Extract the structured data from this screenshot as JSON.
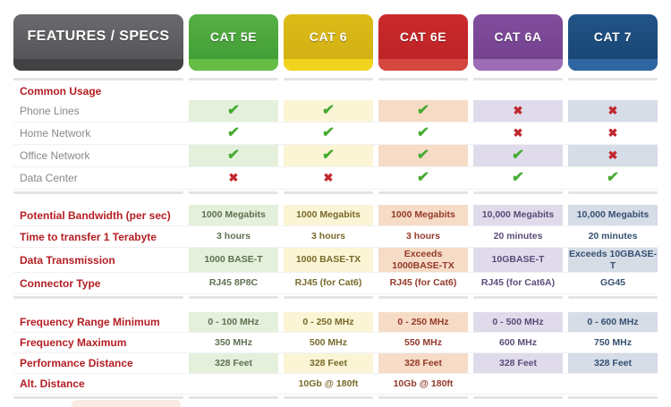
{
  "header": {
    "features_tab": {
      "label": "FEATURES / SPECS",
      "body_top": "#6a6b6e",
      "body": "#4f5052",
      "strip": "#414244"
    },
    "columns": [
      {
        "label": "CAT 5E",
        "body_top": "#55b045",
        "body": "#3f9a33",
        "strip": "#66bd45",
        "tint": "#e4f0db",
        "text": "#5e7152"
      },
      {
        "label": "CAT 6",
        "body_top": "#dcbb18",
        "body": "#cfae12",
        "strip": "#f0d41e",
        "tint": "#fbf5d6",
        "text": "#786a2b"
      },
      {
        "label": "CAT 6E",
        "body_top": "#cb2a2c",
        "body": "#ba2125",
        "strip": "#d54840",
        "tint": "#f6dcc6",
        "text": "#94392b"
      },
      {
        "label": "CAT 6A",
        "body_top": "#824d9d",
        "body": "#713f8c",
        "strip": "#9c6cb5",
        "tint": "#e0dbeb",
        "text": "#5b4b79"
      },
      {
        "label": "CAT 7",
        "body_top": "#215487",
        "body": "#174472",
        "strip": "#2d66a0",
        "tint": "#d6dde7",
        "text": "#365070"
      }
    ]
  },
  "marks": {
    "check": "✔",
    "cross": "✖"
  },
  "colors": {
    "check_green": "#44ab30",
    "cross_red": "#c1272d",
    "section_label_red": "#b41e23",
    "plain_label_gray": "#87888a",
    "divider_gray": "#e3e4e5"
  },
  "sections": [
    {
      "name": "common-usage",
      "title": "Common Usage",
      "label_style": "plain",
      "rows": [
        {
          "label": "Phone Lines",
          "type": "marks",
          "values": [
            "check",
            "check",
            "check",
            "cross",
            "cross"
          ]
        },
        {
          "label": "Home Network",
          "type": "marks",
          "values": [
            "check",
            "check",
            "check",
            "cross",
            "cross"
          ]
        },
        {
          "label": "Office Network",
          "type": "marks",
          "values": [
            "check",
            "check",
            "check",
            "check",
            "cross"
          ]
        },
        {
          "label": "Data Center",
          "type": "marks",
          "values": [
            "cross",
            "cross",
            "check",
            "check",
            "check"
          ]
        }
      ]
    },
    {
      "name": "bandwidth-specs",
      "label_style": "section",
      "rows": [
        {
          "label": "Potential Bandwidth (per sec)",
          "type": "text",
          "values": [
            "1000 Megabits",
            "1000 Megabits",
            "1000 Megabits",
            "10,000 Megabits",
            "10,000 Megabits"
          ]
        },
        {
          "label": "Time to transfer 1 Terabyte",
          "type": "text",
          "values": [
            "3 hours",
            "3 hours",
            "3 hours",
            "20 minutes",
            "20 minutes"
          ]
        },
        {
          "label": "Data Transmission",
          "type": "text",
          "values": [
            "1000 BASE-T",
            "1000 BASE-TX",
            "Exceeds 1000BASE-TX",
            "10GBASE-T",
            "Exceeds 10GBASE-T"
          ]
        },
        {
          "label": "Connector Type",
          "type": "text",
          "values": [
            "RJ45 8P8C",
            "RJ45 (for Cat6)",
            "RJ45 (for Cat6)",
            "RJ45 (for Cat6A)",
            "GG45"
          ]
        }
      ]
    },
    {
      "name": "frequency-specs",
      "label_style": "section",
      "rows": [
        {
          "label": "Frequency Range Minimum",
          "type": "text",
          "values": [
            "0 - 100 MHz",
            "0 - 250 MHz",
            "0 - 250 MHz",
            "0 - 500 MHz",
            "0 - 600 MHz"
          ]
        },
        {
          "label": "Frequency Maximum",
          "type": "text",
          "values": [
            "350 MHz",
            "500 MHz",
            "550 MHz",
            "600 MHz",
            "750 MHz"
          ]
        },
        {
          "label": "Performance Distance",
          "type": "text",
          "values": [
            "328 Feet",
            "328 Feet",
            "328 Feet",
            "328 Feet",
            "328 Feet"
          ]
        },
        {
          "label": "Alt. Distance",
          "type": "text",
          "values": [
            "",
            "10Gb @ 180ft",
            "10Gb @ 180ft",
            "",
            ""
          ]
        }
      ]
    }
  ],
  "chart_data": {
    "type": "table",
    "title": "Ethernet cable category comparison",
    "columns": [
      "FEATURES / SPECS",
      "CAT 5E",
      "CAT 6",
      "CAT 6E",
      "CAT 6A",
      "CAT 7"
    ],
    "rows": [
      [
        "Common Usage",
        "",
        "",
        "",
        "",
        ""
      ],
      [
        "Phone Lines",
        "yes",
        "yes",
        "yes",
        "no",
        "no"
      ],
      [
        "Home Network",
        "yes",
        "yes",
        "yes",
        "no",
        "no"
      ],
      [
        "Office Network",
        "yes",
        "yes",
        "yes",
        "yes",
        "no"
      ],
      [
        "Data Center",
        "no",
        "no",
        "yes",
        "yes",
        "yes"
      ],
      [
        "Potential Bandwidth (per sec)",
        "1000 Megabits",
        "1000 Megabits",
        "1000 Megabits",
        "10,000 Megabits",
        "10,000 Megabits"
      ],
      [
        "Time to transfer 1 Terabyte",
        "3 hours",
        "3 hours",
        "3 hours",
        "20 minutes",
        "20 minutes"
      ],
      [
        "Data Transmission",
        "1000 BASE-T",
        "1000 BASE-TX",
        "Exceeds 1000BASE-TX",
        "10GBASE-T",
        "Exceeds 10GBASE-T"
      ],
      [
        "Connector Type",
        "RJ45 8P8C",
        "RJ45 (for Cat6)",
        "RJ45 (for Cat6)",
        "RJ45 (for Cat6A)",
        "GG45"
      ],
      [
        "Frequency Range Minimum",
        "0 - 100 MHz",
        "0 - 250 MHz",
        "0 - 250 MHz",
        "0 - 500 MHz",
        "0 - 600 MHz"
      ],
      [
        "Frequency Maximum",
        "350 MHz",
        "500 MHz",
        "550 MHz",
        "600 MHz",
        "750 MHz"
      ],
      [
        "Performance Distance",
        "328 Feet",
        "328 Feet",
        "328 Feet",
        "328 Feet",
        "328 Feet"
      ],
      [
        "Alt. Distance",
        "",
        "10Gb @ 180ft",
        "10Gb @ 180ft",
        "",
        ""
      ]
    ]
  }
}
